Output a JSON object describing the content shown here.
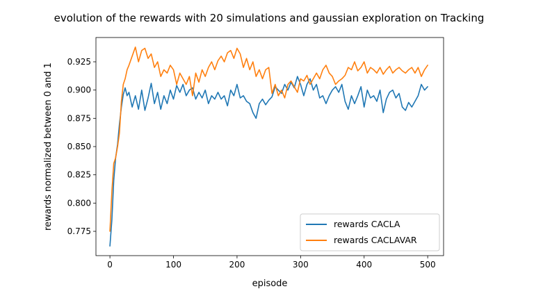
{
  "chart_data": {
    "type": "line",
    "title": "evolution of the rewards with 20 simulations and gaussian exploration on Tracking",
    "xlabel": "episode",
    "ylabel": "rewards normalized between 0 and 1",
    "xlim": [
      -22,
      525
    ],
    "ylim": [
      0.7535,
      0.9465
    ],
    "xticks": [
      0,
      100,
      200,
      300,
      400,
      500
    ],
    "yticks": [
      0.775,
      0.8,
      0.825,
      0.85,
      0.875,
      0.9,
      0.925
    ],
    "ytick_labels": [
      "0.775",
      "0.800",
      "0.825",
      "0.850",
      "0.875",
      "0.900",
      "0.925"
    ],
    "grid": false,
    "legend_position": "bottom-right",
    "series": [
      {
        "name": "rewards CACLA",
        "color": "#1f77b4",
        "x": [
          0,
          3,
          6,
          9,
          12,
          15,
          18,
          21,
          24,
          27,
          30,
          35,
          40,
          45,
          50,
          55,
          60,
          65,
          70,
          75,
          80,
          85,
          90,
          95,
          100,
          105,
          110,
          115,
          120,
          125,
          130,
          135,
          140,
          145,
          150,
          155,
          160,
          165,
          170,
          175,
          180,
          185,
          190,
          195,
          200,
          205,
          210,
          215,
          220,
          225,
          230,
          235,
          240,
          245,
          250,
          255,
          260,
          265,
          270,
          275,
          280,
          285,
          290,
          295,
          300,
          305,
          310,
          315,
          320,
          325,
          330,
          335,
          340,
          345,
          350,
          355,
          360,
          365,
          370,
          375,
          380,
          385,
          390,
          395,
          400,
          405,
          410,
          415,
          420,
          425,
          430,
          435,
          440,
          445,
          450,
          455,
          460,
          465,
          470,
          475,
          480,
          485,
          490,
          495,
          500
        ],
        "values": [
          0.762,
          0.785,
          0.82,
          0.84,
          0.852,
          0.87,
          0.885,
          0.896,
          0.902,
          0.895,
          0.898,
          0.885,
          0.895,
          0.883,
          0.9,
          0.882,
          0.893,
          0.906,
          0.888,
          0.898,
          0.883,
          0.895,
          0.888,
          0.9,
          0.892,
          0.904,
          0.898,
          0.905,
          0.895,
          0.9,
          0.902,
          0.892,
          0.898,
          0.893,
          0.9,
          0.888,
          0.895,
          0.892,
          0.898,
          0.892,
          0.895,
          0.886,
          0.9,
          0.895,
          0.905,
          0.893,
          0.895,
          0.89,
          0.888,
          0.88,
          0.875,
          0.888,
          0.892,
          0.887,
          0.891,
          0.894,
          0.903,
          0.9,
          0.897,
          0.905,
          0.9,
          0.907,
          0.902,
          0.912,
          0.905,
          0.895,
          0.905,
          0.91,
          0.9,
          0.905,
          0.893,
          0.895,
          0.888,
          0.895,
          0.9,
          0.903,
          0.898,
          0.905,
          0.89,
          0.883,
          0.895,
          0.888,
          0.895,
          0.903,
          0.885,
          0.9,
          0.893,
          0.895,
          0.89,
          0.9,
          0.88,
          0.892,
          0.898,
          0.9,
          0.893,
          0.897,
          0.885,
          0.882,
          0.889,
          0.885,
          0.89,
          0.895,
          0.905,
          0.9,
          0.903
        ]
      },
      {
        "name": "rewards CACLAVAR",
        "color": "#ff7f0e",
        "x": [
          0,
          3,
          6,
          9,
          12,
          15,
          18,
          21,
          24,
          27,
          30,
          35,
          40,
          45,
          50,
          55,
          60,
          65,
          70,
          75,
          80,
          85,
          90,
          95,
          100,
          105,
          110,
          115,
          120,
          125,
          130,
          135,
          140,
          145,
          150,
          155,
          160,
          165,
          170,
          175,
          180,
          185,
          190,
          195,
          200,
          205,
          210,
          215,
          220,
          225,
          230,
          235,
          240,
          245,
          250,
          255,
          260,
          265,
          270,
          275,
          280,
          285,
          290,
          295,
          300,
          305,
          310,
          315,
          320,
          325,
          330,
          335,
          340,
          345,
          350,
          355,
          360,
          365,
          370,
          375,
          380,
          385,
          390,
          395,
          400,
          405,
          410,
          415,
          420,
          425,
          430,
          435,
          440,
          445,
          450,
          455,
          460,
          465,
          470,
          475,
          480,
          485,
          490,
          495,
          500
        ],
        "values": [
          0.775,
          0.81,
          0.835,
          0.84,
          0.85,
          0.862,
          0.89,
          0.905,
          0.91,
          0.918,
          0.922,
          0.93,
          0.938,
          0.925,
          0.935,
          0.937,
          0.928,
          0.932,
          0.92,
          0.925,
          0.912,
          0.918,
          0.915,
          0.922,
          0.918,
          0.905,
          0.915,
          0.91,
          0.905,
          0.912,
          0.895,
          0.915,
          0.907,
          0.918,
          0.912,
          0.92,
          0.925,
          0.918,
          0.926,
          0.93,
          0.925,
          0.933,
          0.935,
          0.928,
          0.937,
          0.932,
          0.92,
          0.928,
          0.918,
          0.925,
          0.912,
          0.918,
          0.91,
          0.918,
          0.92,
          0.897,
          0.905,
          0.895,
          0.9,
          0.893,
          0.905,
          0.908,
          0.903,
          0.898,
          0.91,
          0.908,
          0.913,
          0.905,
          0.91,
          0.915,
          0.91,
          0.918,
          0.922,
          0.915,
          0.912,
          0.905,
          0.908,
          0.91,
          0.913,
          0.92,
          0.918,
          0.925,
          0.917,
          0.92,
          0.925,
          0.915,
          0.92,
          0.918,
          0.915,
          0.92,
          0.914,
          0.918,
          0.921,
          0.915,
          0.918,
          0.92,
          0.917,
          0.915,
          0.918,
          0.92,
          0.915,
          0.92,
          0.912,
          0.918,
          0.922
        ]
      }
    ]
  }
}
